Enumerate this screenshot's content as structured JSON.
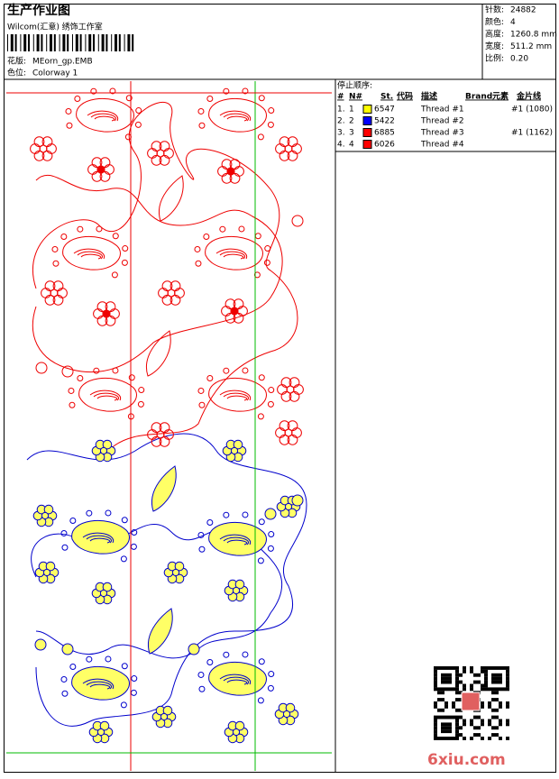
{
  "header": {
    "title": "生产作业图",
    "company": "Wilcom(汇意) 绣饰工作室",
    "design_label": "花版:",
    "design": "MEorn_gp.EMB",
    "colorway_label": "色位:",
    "colorway": "Colorway 1"
  },
  "info": [
    {
      "label": "针数:",
      "value": "24882"
    },
    {
      "label": "颜色:",
      "value": "4"
    },
    {
      "label": "高度:",
      "value": "1260.8 mm"
    },
    {
      "label": "宽度:",
      "value": "511.2 mm"
    },
    {
      "label": "比例:",
      "value": "0.20"
    }
  ],
  "stop_sequence": {
    "title": "停止顺序:",
    "columns": [
      "#",
      "N#",
      "St.",
      "代码",
      "描述",
      "Brand",
      "元素",
      "金片线"
    ],
    "rows": [
      {
        "num": "1.",
        "n": "1",
        "color": "#ffff00",
        "code": "6547",
        "desc": "Thread #1",
        "sequins": "#1 (1080)"
      },
      {
        "num": "2.",
        "n": "2",
        "color": "#0000ff",
        "code": "5422",
        "desc": "Thread #2"
      },
      {
        "num": "3.",
        "n": "3",
        "color": "#ff0000",
        "code": "6885",
        "desc": "Thread #3",
        "sequins": "#1 (1162)"
      },
      {
        "num": "4.",
        "n": "4",
        "color": "#ff0000",
        "code": "6026",
        "desc": "Thread #4"
      }
    ]
  },
  "watermark": "6xiu.com"
}
